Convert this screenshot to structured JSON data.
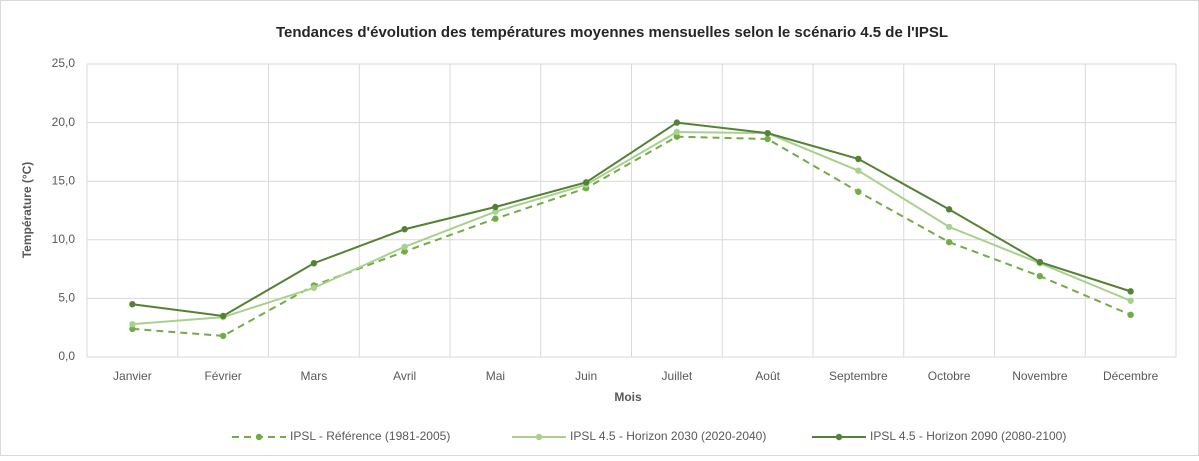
{
  "chart_data": {
    "type": "line",
    "title": "Tendances d'évolution des températures moyennes mensuelles selon le scénario 4.5 de l'IPSL",
    "x_label": "Mois",
    "y_label": "Température (°C)",
    "categories": [
      "Janvier",
      "Février",
      "Mars",
      "Avril",
      "Mai",
      "Juin",
      "Juillet",
      "Août",
      "Septembre",
      "Octobre",
      "Novembre",
      "Décembre"
    ],
    "series": [
      {
        "name": "IPSL - Référence (1981-2005)",
        "color": "#70ad47",
        "line_style": "dashed",
        "values": [
          2.4,
          1.8,
          6.1,
          9.0,
          11.8,
          14.4,
          18.8,
          18.6,
          14.1,
          9.8,
          6.9,
          3.6
        ]
      },
      {
        "name": "IPSL 4.5 - Horizon 2030 (2020-2040)",
        "color": "#a9d18e",
        "line_style": "solid",
        "values": [
          2.8,
          3.4,
          5.9,
          9.4,
          12.4,
          14.7,
          19.2,
          19.1,
          15.9,
          11.1,
          8.0,
          4.8
        ]
      },
      {
        "name": "IPSL 4.5 - Horizon 2090 (2080-2100)",
        "color": "#548235",
        "line_style": "solid",
        "values": [
          4.5,
          3.5,
          8.0,
          10.9,
          12.8,
          14.9,
          20.0,
          19.1,
          16.9,
          12.6,
          8.1,
          5.6
        ]
      }
    ],
    "ylim": [
      0,
      25
    ],
    "yticks": [
      {
        "value": 0,
        "label": "0,0"
      },
      {
        "value": 5,
        "label": "5,0"
      },
      {
        "value": 10,
        "label": "10,0"
      },
      {
        "value": 15,
        "label": "15,0"
      },
      {
        "value": 20,
        "label": "20,0"
      },
      {
        "value": 25,
        "label": "25,0"
      }
    ],
    "grid": true,
    "legend": "bottom"
  }
}
